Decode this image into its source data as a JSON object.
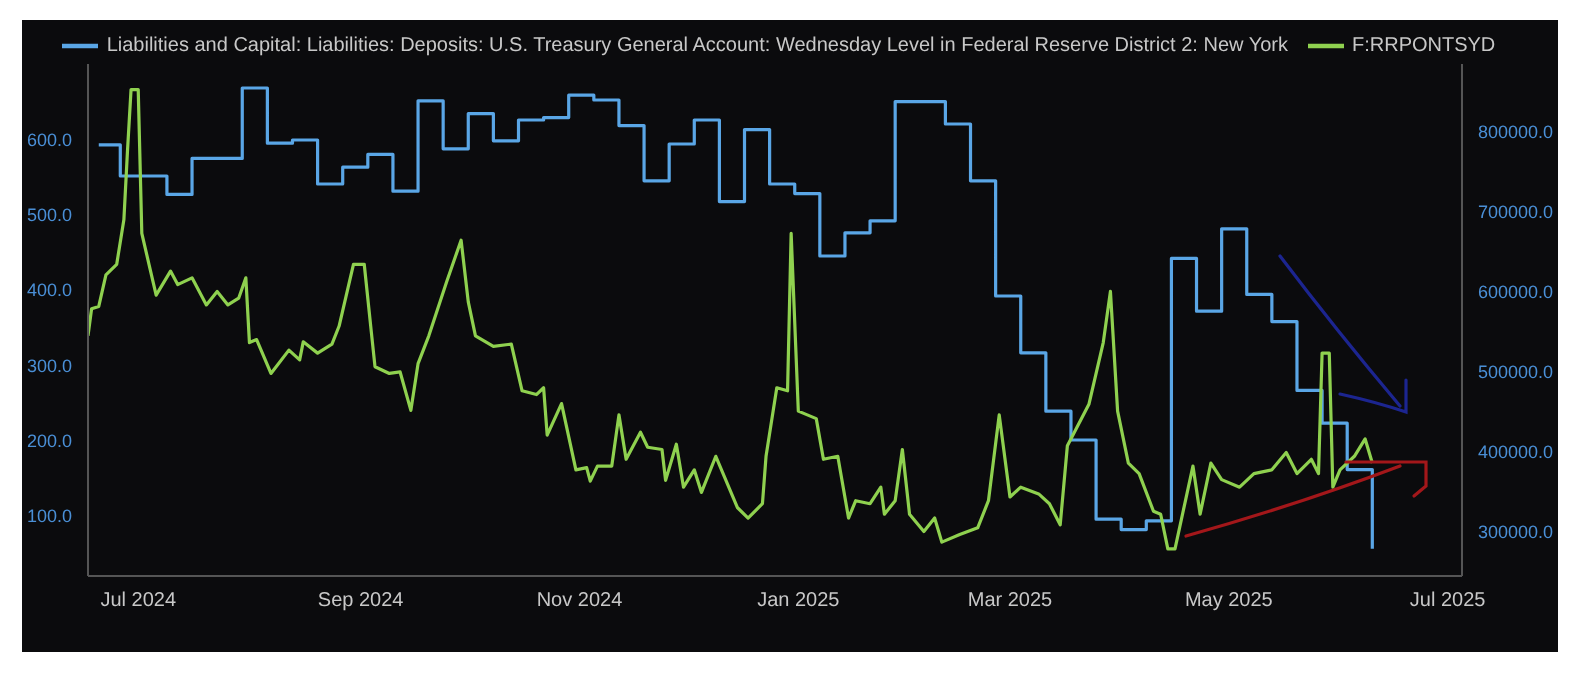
{
  "chart_data": {
    "type": "line",
    "legend": "top",
    "xlim": [
      "2024-06-17",
      "2025-07-05"
    ],
    "xticks": [
      {
        "value": "2024-07-01",
        "label": "Jul 2024"
      },
      {
        "value": "2024-09-01",
        "label": "Sep 2024"
      },
      {
        "value": "2024-11-01",
        "label": "Nov 2024"
      },
      {
        "value": "2025-01-01",
        "label": "Jan 2025"
      },
      {
        "value": "2025-03-01",
        "label": "Mar 2025"
      },
      {
        "value": "2025-05-01",
        "label": "May 2025"
      },
      {
        "value": "2025-07-01",
        "label": "Jul 2025"
      }
    ],
    "ylim": [
      20,
      700
    ],
    "yticks": [
      {
        "value": 100,
        "label": "100.0"
      },
      {
        "value": 200,
        "label": "200.0"
      },
      {
        "value": 300,
        "label": "300.0"
      },
      {
        "value": 400,
        "label": "400.0"
      },
      {
        "value": 500,
        "label": "500.0"
      },
      {
        "value": 600,
        "label": "600.0"
      }
    ],
    "y2lim": [
      245000,
      885000
    ],
    "y2ticks": [
      {
        "value": 300000,
        "label": "300000.0"
      },
      {
        "value": 400000,
        "label": "400000.0"
      },
      {
        "value": 500000,
        "label": "500000.0"
      },
      {
        "value": 600000,
        "label": "600000.0"
      },
      {
        "value": 700000,
        "label": "700000.0"
      },
      {
        "value": 800000,
        "label": "800000.0"
      }
    ],
    "series": [
      {
        "name": "Liabilities and Capital: Liabilities: Deposits: U.S. Treasury General Account: Wednesday Level in Federal Reserve District 2: New York",
        "type": "step",
        "axis": "y2",
        "color": "#5aa6e6",
        "x": [
          "2024-06-20",
          "2024-06-26",
          "2024-07-09",
          "2024-07-16",
          "2024-07-30",
          "2024-08-06",
          "2024-08-13",
          "2024-08-20",
          "2024-08-27",
          "2024-09-03",
          "2024-09-10",
          "2024-09-17",
          "2024-09-24",
          "2024-10-01",
          "2024-10-08",
          "2024-10-15",
          "2024-10-22",
          "2024-10-29",
          "2024-11-05",
          "2024-11-12",
          "2024-11-19",
          "2024-11-26",
          "2024-12-03",
          "2024-12-10",
          "2024-12-17",
          "2024-12-24",
          "2024-12-31",
          "2025-01-07",
          "2025-01-14",
          "2025-01-21",
          "2025-01-28",
          "2025-02-11",
          "2025-02-18",
          "2025-02-25",
          "2025-03-04",
          "2025-03-11",
          "2025-03-18",
          "2025-03-25",
          "2025-04-01",
          "2025-04-08",
          "2025-04-15",
          "2025-04-22",
          "2025-04-29",
          "2025-05-06",
          "2025-05-13",
          "2025-05-20",
          "2025-05-27",
          "2025-06-03",
          "2025-06-10"
        ],
        "values": [
          784000,
          745000,
          722000,
          767000,
          855000,
          786000,
          790000,
          735000,
          756000,
          772000,
          726000,
          839000,
          779000,
          823000,
          789000,
          815000,
          818000,
          846000,
          840000,
          808000,
          739000,
          785000,
          815000,
          713000,
          803000,
          735000,
          723000,
          645000,
          674000,
          689000,
          838000,
          810000,
          739000,
          595000,
          524000,
          451000,
          415000,
          316000,
          303000,
          314000,
          642000,
          576000,
          679000,
          597000,
          563000,
          477000,
          436000,
          378000,
          279000
        ]
      },
      {
        "name": "F:RRPONTSYD",
        "type": "line",
        "color": "#8fd14f",
        "x": [
          "2024-06-17",
          "2024-06-18",
          "2024-06-20",
          "2024-06-22",
          "2024-06-25",
          "2024-06-27",
          "2024-06-28",
          "2024-06-29",
          "2024-07-01",
          "2024-07-02",
          "2024-07-04",
          "2024-07-06",
          "2024-07-10",
          "2024-07-12",
          "2024-07-16",
          "2024-07-20",
          "2024-07-23",
          "2024-07-26",
          "2024-07-29",
          "2024-07-31",
          "2024-08-01",
          "2024-08-03",
          "2024-08-07",
          "2024-08-12",
          "2024-08-15",
          "2024-08-16",
          "2024-08-20",
          "2024-08-24",
          "2024-08-26",
          "2024-08-30",
          "2024-09-02",
          "2024-09-04",
          "2024-09-05",
          "2024-09-09",
          "2024-09-12",
          "2024-09-15",
          "2024-09-17",
          "2024-09-20",
          "2024-09-25",
          "2024-09-29",
          "2024-10-01",
          "2024-10-03",
          "2024-10-08",
          "2024-10-13",
          "2024-10-16",
          "2024-10-20",
          "2024-10-22",
          "2024-10-23",
          "2024-10-27",
          "2024-10-31",
          "2024-11-03",
          "2024-11-04",
          "2024-11-06",
          "2024-11-10",
          "2024-11-12",
          "2024-11-14",
          "2024-11-18",
          "2024-11-20",
          "2024-11-24",
          "2024-11-25",
          "2024-11-28",
          "2024-11-30",
          "2024-12-03",
          "2024-12-05",
          "2024-12-09",
          "2024-12-15",
          "2024-12-18",
          "2024-12-22",
          "2024-12-23",
          "2024-12-26",
          "2024-12-29",
          "2024-12-30",
          "2025-01-01",
          "2025-01-06",
          "2025-01-08",
          "2025-01-12",
          "2025-01-15",
          "2025-01-17",
          "2025-01-21",
          "2025-01-24",
          "2025-01-25",
          "2025-01-28",
          "2025-01-30",
          "2025-02-01",
          "2025-02-05",
          "2025-02-08",
          "2025-02-10",
          "2025-02-15",
          "2025-02-20",
          "2025-02-23",
          "2025-02-26",
          "2025-03-01",
          "2025-03-04",
          "2025-03-09",
          "2025-03-12",
          "2025-03-15",
          "2025-03-17",
          "2025-03-23",
          "2025-03-27",
          "2025-03-29",
          "2025-03-31",
          "2025-04-03",
          "2025-04-06",
          "2025-04-10",
          "2025-04-12",
          "2025-04-14",
          "2025-04-16",
          "2025-04-21",
          "2025-04-23",
          "2025-04-26",
          "2025-04-29",
          "2025-05-04",
          "2025-05-08",
          "2025-05-13",
          "2025-05-17",
          "2025-05-20",
          "2025-05-24",
          "2025-05-26",
          "2025-05-27",
          "2025-05-29",
          "2025-05-30",
          "2025-06-01",
          "2025-06-05",
          "2025-06-08",
          "2025-06-10"
        ],
        "values": [
          339,
          375,
          378,
          420,
          434,
          493,
          584,
          666,
          666,
          475,
          434,
          393,
          425,
          407,
          416,
          380,
          398,
          380,
          389,
          416,
          330,
          334,
          289,
          320,
          307,
          331,
          316,
          328,
          352,
          434,
          434,
          343,
          298,
          289,
          291,
          240,
          302,
          339,
          411,
          466,
          384,
          339,
          325,
          328,
          266,
          261,
          270,
          207,
          249,
          161,
          164,
          146,
          166,
          166,
          234,
          175,
          211,
          191,
          188,
          147,
          195,
          138,
          161,
          131,
          179,
          111,
          97,
          116,
          179,
          270,
          266,
          475,
          239,
          229,
          175,
          179,
          97,
          120,
          116,
          138,
          102,
          120,
          188,
          102,
          79,
          97,
          65,
          75,
          84,
          120,
          234,
          125,
          138,
          129,
          116,
          88,
          193,
          248,
          330,
          398,
          239,
          170,
          156,
          106,
          102,
          56,
          56,
          166,
          102,
          170,
          148,
          138,
          156,
          161,
          184,
          156,
          175,
          156,
          316,
          316,
          138,
          161,
          179,
          202,
          170
        ]
      }
    ]
  }
}
